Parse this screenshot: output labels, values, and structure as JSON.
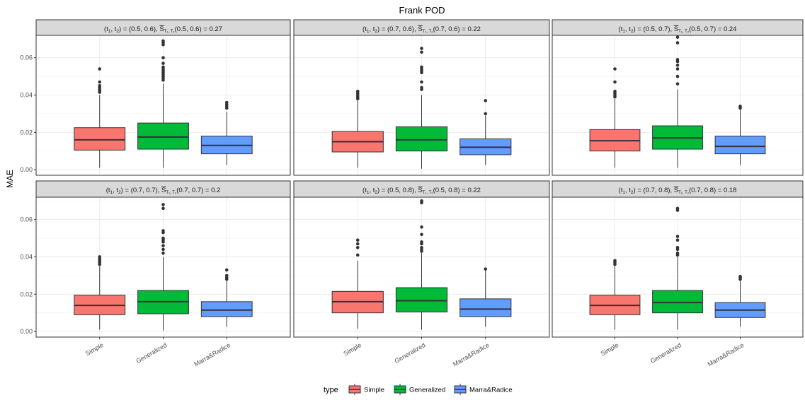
{
  "title": "Frank POD",
  "ylabel": "MAE",
  "legend": {
    "title": "type",
    "items": [
      {
        "label": "Simple",
        "color": "#F8766D"
      },
      {
        "label": "Generalized",
        "color": "#00BA38"
      },
      {
        "label": "Marra&Radice",
        "color": "#619CFF"
      }
    ]
  },
  "chart_data": {
    "type": "boxplot",
    "title": "Frank POD",
    "xlabel": "",
    "ylabel": "MAE",
    "categories": [
      "Simple",
      "Generalized",
      "Marra&Radice"
    ],
    "ylim": [
      -0.003,
      0.072
    ],
    "yticks": [
      0.0,
      0.02,
      0.04,
      0.06
    ],
    "ytick_labels": [
      "0.00",
      "0.02",
      "0.04",
      "0.06"
    ],
    "grid": true,
    "legend_position": "bottom",
    "panels": [
      {
        "strip": {
          "pre": "(t",
          "sub1": "1",
          "mid1": ", t",
          "sub2": "2",
          "mid2": ") = (0.5, 0.6),   ",
          "sbar": "S",
          "subS": "T₁, T₂",
          "post": "(0.5, 0.6) = 0.27"
        },
        "boxes": [
          {
            "name": "Simple",
            "min": 0.001,
            "q1": 0.0105,
            "median": 0.016,
            "q3": 0.0225,
            "max": 0.04,
            "outliers": [
              0.0415,
              0.042,
              0.043,
              0.044,
              0.045,
              0.047,
              0.054
            ]
          },
          {
            "name": "Generalized",
            "min": 0.001,
            "q1": 0.011,
            "median": 0.0175,
            "q3": 0.025,
            "max": 0.046,
            "outliers": [
              0.048,
              0.049,
              0.05,
              0.051,
              0.052,
              0.053,
              0.054,
              0.055,
              0.057,
              0.06,
              0.067,
              0.068,
              0.069
            ]
          },
          {
            "name": "Marra&Radice",
            "min": 0.0025,
            "q1": 0.0085,
            "median": 0.013,
            "q3": 0.018,
            "max": 0.031,
            "outliers": [
              0.033,
              0.034,
              0.035,
              0.036
            ]
          }
        ]
      },
      {
        "strip": {
          "pre": "(t",
          "sub1": "1",
          "mid1": ", t",
          "sub2": "2",
          "mid2": ") = (0.7, 0.6),   ",
          "sbar": "S",
          "subS": "T₁, T₂",
          "post": "(0.7, 0.6) = 0.22"
        },
        "boxes": [
          {
            "name": "Simple",
            "min": 0.001,
            "q1": 0.0095,
            "median": 0.015,
            "q3": 0.0205,
            "max": 0.037,
            "outliers": [
              0.038,
              0.039,
              0.04,
              0.041,
              0.042
            ]
          },
          {
            "name": "Generalized",
            "min": 0.0005,
            "q1": 0.01,
            "median": 0.016,
            "q3": 0.023,
            "max": 0.04,
            "outliers": [
              0.043,
              0.044,
              0.047,
              0.052,
              0.053,
              0.054,
              0.055,
              0.063,
              0.065
            ]
          },
          {
            "name": "Marra&Radice",
            "min": 0.0025,
            "q1": 0.008,
            "median": 0.012,
            "q3": 0.0165,
            "max": 0.029,
            "outliers": [
              0.03,
              0.037
            ]
          }
        ]
      },
      {
        "strip": {
          "pre": "(t",
          "sub1": "1",
          "mid1": ", t",
          "sub2": "2",
          "mid2": ") = (0.5, 0.7),   ",
          "sbar": "S",
          "subS": "T₁, T₂",
          "post": "(0.5, 0.7) = 0.24"
        },
        "boxes": [
          {
            "name": "Simple",
            "min": 0.001,
            "q1": 0.01,
            "median": 0.0155,
            "q3": 0.0215,
            "max": 0.038,
            "outliers": [
              0.039,
              0.04,
              0.041,
              0.042,
              0.047,
              0.054
            ]
          },
          {
            "name": "Generalized",
            "min": 0.001,
            "q1": 0.011,
            "median": 0.017,
            "q3": 0.0235,
            "max": 0.043,
            "outliers": [
              0.046,
              0.05,
              0.054,
              0.056,
              0.058,
              0.059,
              0.068,
              0.071
            ]
          },
          {
            "name": "Marra&Radice",
            "min": 0.0025,
            "q1": 0.0085,
            "median": 0.0125,
            "q3": 0.018,
            "max": 0.032,
            "outliers": [
              0.033,
              0.034
            ]
          }
        ]
      },
      {
        "strip": {
          "pre": "(t",
          "sub1": "1",
          "mid1": ", t",
          "sub2": "2",
          "mid2": ") = (0.7, 0.7),   ",
          "sbar": "S",
          "subS": "T₁, T₂",
          "post": "(0.7, 0.7) = 0.2"
        },
        "boxes": [
          {
            "name": "Simple",
            "min": 0.001,
            "q1": 0.009,
            "median": 0.014,
            "q3": 0.0195,
            "max": 0.035,
            "outliers": [
              0.036,
              0.037,
              0.038,
              0.039,
              0.04
            ]
          },
          {
            "name": "Generalized",
            "min": 0.0005,
            "q1": 0.0095,
            "median": 0.016,
            "q3": 0.022,
            "max": 0.04,
            "outliers": [
              0.042,
              0.044,
              0.046,
              0.048,
              0.049,
              0.05,
              0.053,
              0.054,
              0.066,
              0.068
            ]
          },
          {
            "name": "Marra&Radice",
            "min": 0.0025,
            "q1": 0.008,
            "median": 0.0115,
            "q3": 0.016,
            "max": 0.027,
            "outliers": [
              0.028,
              0.029,
              0.03,
              0.033
            ]
          }
        ]
      },
      {
        "strip": {
          "pre": "(t",
          "sub1": "1",
          "mid1": ", t",
          "sub2": "2",
          "mid2": ") = (0.5, 0.8),   ",
          "sbar": "S",
          "subS": "T₁, T₂",
          "post": "(0.5, 0.8) = 0.22"
        },
        "boxes": [
          {
            "name": "Simple",
            "min": 0.0015,
            "q1": 0.01,
            "median": 0.016,
            "q3": 0.0215,
            "max": 0.038,
            "outliers": [
              0.041,
              0.045,
              0.047,
              0.049
            ]
          },
          {
            "name": "Generalized",
            "min": 0.001,
            "q1": 0.0105,
            "median": 0.0165,
            "q3": 0.0235,
            "max": 0.042,
            "outliers": [
              0.043,
              0.044,
              0.045,
              0.047,
              0.048,
              0.052,
              0.056,
              0.069,
              0.07
            ]
          },
          {
            "name": "Marra&Radice",
            "min": 0.0025,
            "q1": 0.008,
            "median": 0.012,
            "q3": 0.0175,
            "max": 0.033,
            "outliers": [
              0.0335
            ]
          }
        ]
      },
      {
        "strip": {
          "pre": "(t",
          "sub1": "1",
          "mid1": ", t",
          "sub2": "2",
          "mid2": ") = (0.7, 0.8),   ",
          "sbar": "S",
          "subS": "T₁, T₂",
          "post": "(0.7, 0.8) = 0.18"
        },
        "boxes": [
          {
            "name": "Simple",
            "min": 0.001,
            "q1": 0.009,
            "median": 0.014,
            "q3": 0.0195,
            "max": 0.035,
            "outliers": [
              0.036,
              0.037,
              0.038
            ]
          },
          {
            "name": "Generalized",
            "min": 0.001,
            "q1": 0.01,
            "median": 0.0155,
            "q3": 0.022,
            "max": 0.04,
            "outliers": [
              0.041,
              0.042,
              0.044,
              0.045,
              0.049,
              0.051,
              0.065,
              0.066
            ]
          },
          {
            "name": "Marra&Radice",
            "min": 0.0025,
            "q1": 0.0075,
            "median": 0.0115,
            "q3": 0.0155,
            "max": 0.027,
            "outliers": [
              0.028,
              0.029,
              0.0295
            ]
          }
        ]
      }
    ]
  }
}
